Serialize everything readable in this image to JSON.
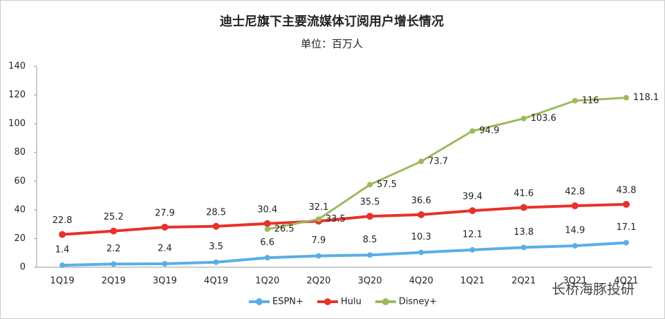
{
  "chart_data": {
    "type": "line",
    "title": "迪士尼旗下主要流媒体订阅用户增长情况",
    "subtitle": "单位：百万人",
    "watermark": "长桥海豚投研",
    "categories": [
      "1Q19",
      "2Q19",
      "3Q19",
      "4Q19",
      "1Q20",
      "2Q20",
      "3Q20",
      "4Q20",
      "1Q21",
      "2Q21",
      "3Q21",
      "4Q21"
    ],
    "series": [
      {
        "name": "ESPN+",
        "color": "#5aaee6",
        "values": [
          1.4,
          2.2,
          2.4,
          3.5,
          6.6,
          7.9,
          8.5,
          10.3,
          12.1,
          13.8,
          14.9,
          17.1
        ]
      },
      {
        "name": "Hulu",
        "color": "#e8312a",
        "values": [
          22.8,
          25.2,
          27.9,
          28.5,
          30.4,
          32.1,
          35.5,
          36.6,
          39.4,
          41.6,
          42.8,
          43.8
        ]
      },
      {
        "name": "Disney+",
        "color": "#9cba5a",
        "values": [
          null,
          null,
          null,
          null,
          26.5,
          33.5,
          57.5,
          73.7,
          94.9,
          103.6,
          116,
          118.1
        ]
      }
    ],
    "ylim": [
      0,
      140
    ],
    "yticks": [
      0,
      20,
      40,
      60,
      80,
      100,
      120,
      140
    ],
    "grid": false,
    "legend": "bottom"
  }
}
